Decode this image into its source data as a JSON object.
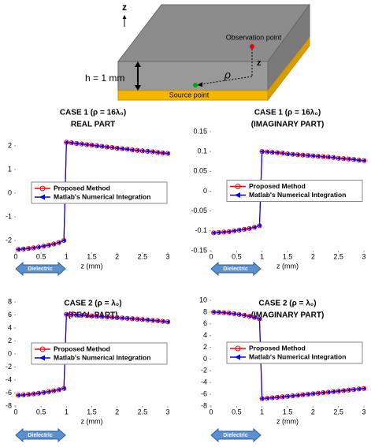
{
  "diagram": {
    "axis_label": "z",
    "observation": "Observation point",
    "z_label": "z",
    "rho_label": "ρ",
    "height_label": "h = 1 mm",
    "source": "Source point"
  },
  "chart_data": [
    {
      "type": "line",
      "title": "CASE 1 (ρ = 16λ₀)",
      "subtitle": "REAL PART",
      "x_label": "z (mm)",
      "annotation": "Dielectric",
      "legend": "center",
      "x": [
        0.05,
        0.15,
        0.25,
        0.35,
        0.45,
        0.55,
        0.65,
        0.75,
        0.85,
        0.95,
        1,
        1.1,
        1.2,
        1.3,
        1.4,
        1.5,
        1.6,
        1.7,
        1.8,
        1.9,
        2,
        2.1,
        2.2,
        2.3,
        2.4,
        2.5,
        2.6,
        2.7,
        2.8,
        2.9,
        3
      ],
      "xlim": [
        0,
        3
      ],
      "xticks": [
        0,
        0.5,
        1,
        1.5,
        2,
        2.5,
        3
      ],
      "ylim": [
        -2.5,
        2.5
      ],
      "yticks": [
        -2,
        -1,
        0,
        1,
        2
      ],
      "series": [
        {
          "name": "Proposed Method",
          "color": "#ff0000",
          "values": [
            -2.38,
            -2.36,
            -2.34,
            -2.31,
            -2.28,
            -2.24,
            -2.2,
            -2.15,
            -2.09,
            -2.0,
            2.15,
            2.13,
            2.1,
            2.08,
            2.05,
            2.03,
            2.0,
            1.98,
            1.95,
            1.93,
            1.9,
            1.88,
            1.86,
            1.83,
            1.81,
            1.79,
            1.77,
            1.75,
            1.72,
            1.7,
            1.68
          ]
        },
        {
          "name": "Matlab's Numerical Integration",
          "color": "#0000ff",
          "values": [
            -2.38,
            -2.36,
            -2.34,
            -2.31,
            -2.28,
            -2.24,
            -2.2,
            -2.15,
            -2.09,
            -2.0,
            2.15,
            2.13,
            2.1,
            2.08,
            2.05,
            2.03,
            2.0,
            1.98,
            1.95,
            1.93,
            1.9,
            1.88,
            1.86,
            1.83,
            1.81,
            1.79,
            1.77,
            1.75,
            1.72,
            1.7,
            1.68
          ]
        }
      ]
    },
    {
      "type": "line",
      "title": "CASE 1 (ρ = 16λ₀)",
      "subtitle": "(IMAGINARY PART)",
      "x_label": "z (mm)",
      "annotation": "Dielectric",
      "legend": "center",
      "x": [
        0.05,
        0.15,
        0.25,
        0.35,
        0.45,
        0.55,
        0.65,
        0.75,
        0.85,
        0.95,
        1,
        1.1,
        1.2,
        1.3,
        1.4,
        1.5,
        1.6,
        1.7,
        1.8,
        1.9,
        2,
        2.1,
        2.2,
        2.3,
        2.4,
        2.5,
        2.6,
        2.7,
        2.8,
        2.9,
        3
      ],
      "xlim": [
        0,
        3
      ],
      "xticks": [
        0,
        0.5,
        1,
        1.5,
        2,
        2.5,
        3
      ],
      "ylim": [
        -0.15,
        0.15
      ],
      "yticks": [
        -0.15,
        -0.1,
        -0.05,
        0,
        0.05,
        0.1,
        0.15
      ],
      "series": [
        {
          "name": "Proposed Method",
          "color": "#ff0000",
          "values": [
            -0.105,
            -0.104,
            -0.103,
            -0.102,
            -0.1,
            -0.098,
            -0.096,
            -0.094,
            -0.091,
            -0.087,
            0.1,
            0.099,
            0.098,
            0.097,
            0.096,
            0.094,
            0.093,
            0.092,
            0.091,
            0.09,
            0.089,
            0.088,
            0.087,
            0.086,
            0.085,
            0.083,
            0.082,
            0.081,
            0.08,
            0.078,
            0.077
          ]
        },
        {
          "name": "Matlab's Numerical Integration",
          "color": "#0000ff",
          "values": [
            -0.105,
            -0.104,
            -0.103,
            -0.102,
            -0.1,
            -0.098,
            -0.096,
            -0.094,
            -0.091,
            -0.087,
            0.1,
            0.099,
            0.098,
            0.097,
            0.096,
            0.094,
            0.093,
            0.092,
            0.091,
            0.09,
            0.089,
            0.088,
            0.087,
            0.086,
            0.085,
            0.083,
            0.082,
            0.081,
            0.08,
            0.078,
            0.077
          ]
        }
      ]
    },
    {
      "type": "line",
      "title": "CASE 2 (ρ = λ₀)",
      "subtitle": "(REAL PART)",
      "x_label": "z (mm)",
      "annotation": "Dielectric",
      "legend": "center",
      "x": [
        0.05,
        0.15,
        0.25,
        0.35,
        0.45,
        0.55,
        0.65,
        0.75,
        0.85,
        0.95,
        1,
        1.1,
        1.2,
        1.3,
        1.4,
        1.5,
        1.6,
        1.7,
        1.8,
        1.9,
        2,
        2.1,
        2.2,
        2.3,
        2.4,
        2.5,
        2.6,
        2.7,
        2.8,
        2.9,
        3
      ],
      "xlim": [
        0,
        3
      ],
      "xticks": [
        0,
        0.5,
        1,
        1.5,
        2,
        2.5,
        3
      ],
      "ylim": [
        -8,
        8
      ],
      "yticks": [
        -8,
        -6,
        -4,
        -2,
        0,
        2,
        4,
        6,
        8
      ],
      "series": [
        {
          "name": "Proposed Method",
          "color": "#ff0000",
          "values": [
            -6.35,
            -6.3,
            -6.22,
            -6.14,
            -6.04,
            -5.92,
            -5.8,
            -5.66,
            -5.5,
            -5.3,
            6.1,
            6.06,
            6.01,
            5.96,
            5.91,
            5.85,
            5.8,
            5.75,
            5.7,
            5.64,
            5.59,
            5.53,
            5.48,
            5.42,
            5.36,
            5.3,
            5.24,
            5.17,
            5.1,
            5.02,
            4.95
          ]
        },
        {
          "name": "Matlab's Numerical Integration",
          "color": "#0000ff",
          "values": [
            -6.35,
            -6.3,
            -6.22,
            -6.14,
            -6.04,
            -5.92,
            -5.8,
            -5.66,
            -5.5,
            -5.3,
            6.1,
            6.06,
            6.01,
            5.96,
            5.91,
            5.85,
            5.8,
            5.75,
            5.7,
            5.64,
            5.59,
            5.53,
            5.48,
            5.42,
            5.36,
            5.3,
            5.24,
            5.17,
            5.1,
            5.02,
            4.95
          ]
        }
      ]
    },
    {
      "type": "line",
      "title": "CASE 2 (ρ = λ₀)",
      "subtitle": "(IMAGINARY PART)",
      "x_label": "z (mm)",
      "annotation": "Dielectric",
      "legend": "center",
      "x": [
        0.05,
        0.15,
        0.25,
        0.35,
        0.45,
        0.55,
        0.65,
        0.75,
        0.85,
        0.95,
        1,
        1.1,
        1.2,
        1.3,
        1.4,
        1.5,
        1.6,
        1.7,
        1.8,
        1.9,
        2,
        2.1,
        2.2,
        2.3,
        2.4,
        2.5,
        2.6,
        2.7,
        2.8,
        2.9,
        3
      ],
      "xlim": [
        0,
        3
      ],
      "xticks": [
        0,
        0.5,
        1,
        1.5,
        2,
        2.5,
        3
      ],
      "ylim": [
        -8,
        10
      ],
      "yticks": [
        -8,
        -6,
        -4,
        -2,
        0,
        2,
        4,
        6,
        8,
        10
      ],
      "series": [
        {
          "name": "Proposed Method",
          "color": "#ff0000",
          "values": [
            8.0,
            7.96,
            7.9,
            7.82,
            7.72,
            7.6,
            7.46,
            7.3,
            7.1,
            6.85,
            -6.75,
            -6.68,
            -6.6,
            -6.52,
            -6.44,
            -6.35,
            -6.27,
            -6.18,
            -6.09,
            -6.0,
            -5.91,
            -5.82,
            -5.73,
            -5.64,
            -5.55,
            -5.46,
            -5.37,
            -5.28,
            -5.19,
            -5.1,
            -5.02
          ]
        },
        {
          "name": "Matlab's Numerical Integration",
          "color": "#0000ff",
          "values": [
            8.0,
            7.96,
            7.9,
            7.82,
            7.72,
            7.6,
            7.46,
            7.3,
            7.1,
            6.85,
            -6.75,
            -6.68,
            -6.6,
            -6.52,
            -6.44,
            -6.35,
            -6.27,
            -6.18,
            -6.09,
            -6.0,
            -5.91,
            -5.82,
            -5.73,
            -5.64,
            -5.55,
            -5.46,
            -5.37,
            -5.28,
            -5.19,
            -5.1,
            -5.02
          ]
        }
      ]
    }
  ]
}
